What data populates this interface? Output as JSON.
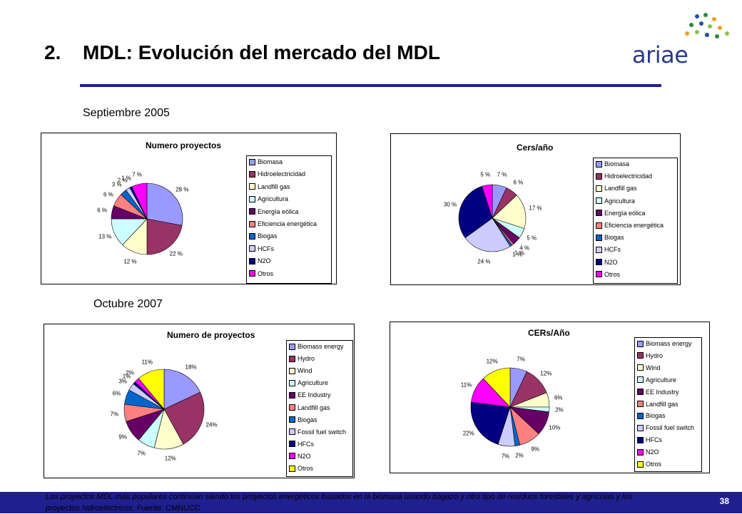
{
  "header": {
    "number": "2.",
    "title": "MDL: Evolución del mercado del MDL",
    "logo_text": "ariae"
  },
  "sections": {
    "sep2005": "Septiembre 2005",
    "oct2007": "Octubre 2007"
  },
  "footer": {
    "text": "Los proyectos MDL más populares continúan siendo los proyectos energéticos basados en la biomasa usando bagazo y otro tipo de residuos forestales y agrícolas y los proyectos hidroeléctricos.",
    "source": "Fuente: CMNUCC",
    "page_number": "38"
  },
  "colors": {
    "accent": "#1f1f8f",
    "palette_2005": [
      "#9999ff",
      "#993366",
      "#ffffcc",
      "#ccffff",
      "#660066",
      "#ff8080",
      "#0066cc",
      "#ccccff",
      "#000080",
      "#ff00ff"
    ],
    "palette_2007": [
      "#9999ff",
      "#993366",
      "#ffffcc",
      "#ccffff",
      "#660066",
      "#ff8080",
      "#0066cc",
      "#ccccff",
      "#000080",
      "#ff00ff",
      "#ffff00"
    ]
  },
  "chart_data": [
    {
      "type": "pie",
      "title": "Numero proyectos",
      "categories": [
        "Biomasa",
        "Hidroelectricidad",
        "Landfill gas",
        "Agricultura",
        "Energía eólica",
        "Eficiencia energética",
        "Biogas",
        "HCFs",
        "N2O",
        "Otros"
      ],
      "values": [
        28,
        22,
        12,
        13,
        6,
        6,
        3,
        2,
        1,
        7
      ],
      "labels": [
        "28 %",
        "22 %",
        "12 %",
        "13 %",
        "6 %",
        "6 %",
        "3 %",
        "2 %",
        "1 %",
        "7 %"
      ],
      "legend": "right"
    },
    {
      "type": "pie",
      "title": "Cers/año",
      "categories": [
        "Biomasa",
        "Hidroelectricidad",
        "Landfill gas",
        "Agricultura",
        "Energía eólica",
        "Eficiencia energética",
        "Biogas",
        "HCFs",
        "N2O",
        "Otros"
      ],
      "values": [
        7,
        6,
        17,
        5,
        4,
        1,
        1,
        24,
        30,
        5
      ],
      "labels": [
        "7 %",
        "6 %",
        "17 %",
        "5 %",
        "4 %",
        "1 %",
        "1 %",
        "24 %",
        "30 %",
        "5 %"
      ],
      "legend": "right"
    },
    {
      "type": "pie",
      "title": "Numero de proyectos",
      "categories": [
        "Biomass energy",
        "Hydro",
        "Wind",
        "Agriculture",
        "EE Industry",
        "Landfill gas",
        "Biogas",
        "Fossil fuel switch",
        "HFCs",
        "N2O",
        "Otros"
      ],
      "values": [
        18,
        24,
        12,
        7,
        9,
        7,
        6,
        3,
        1,
        2,
        11
      ],
      "labels": [
        "18%",
        "24%",
        "12%",
        "7%",
        "9%",
        "7%",
        "6%",
        "3%",
        "1%",
        "2%",
        "11%"
      ],
      "legend": "right"
    },
    {
      "type": "pie",
      "title": "CERs/Año",
      "categories": [
        "Biomass energy",
        "Hydro",
        "Wind",
        "Agriculture",
        "EE Industry",
        "Landfill gas",
        "Biogas",
        "Fossil fuel switch",
        "HFCs",
        "N2O",
        "Otros"
      ],
      "values": [
        7,
        12,
        6,
        2,
        10,
        9,
        2,
        7,
        22,
        11,
        12
      ],
      "labels": [
        "7%",
        "12%",
        "6%",
        "2%",
        "10%",
        "9%",
        "2%",
        "7%",
        "22%",
        "11%",
        "12%"
      ],
      "legend": "right"
    }
  ]
}
